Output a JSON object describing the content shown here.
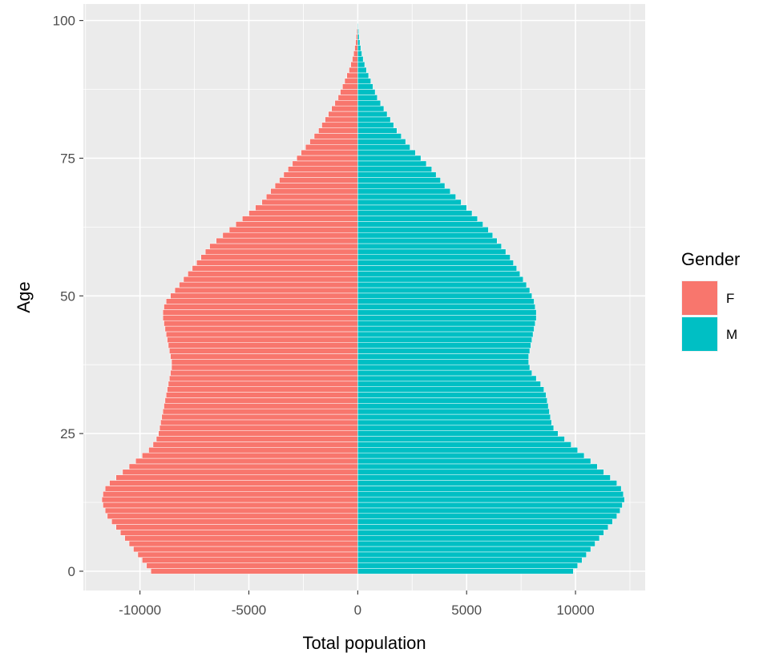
{
  "chart_data": {
    "type": "bar",
    "orientation": "horizontal",
    "xlabel": "Total population",
    "ylabel": "Age",
    "xlim": [
      -12600,
      13200
    ],
    "ylim": [
      -3.5,
      103
    ],
    "x_ticks": [
      -10000,
      -5000,
      0,
      5000,
      10000
    ],
    "x_tick_labels": [
      "-10000",
      "-5000",
      "0",
      "5000",
      "10000"
    ],
    "y_ticks": [
      0,
      25,
      50,
      75,
      100
    ],
    "y_tick_labels": [
      "0",
      "25",
      "50",
      "75",
      "100"
    ],
    "grid": true,
    "legend": {
      "title": "Gender",
      "position": "right",
      "entries": [
        {
          "label": "F",
          "color": "#F8766D"
        },
        {
          "label": "M",
          "color": "#00BFC4"
        }
      ]
    },
    "categories": [
      0,
      1,
      2,
      3,
      4,
      5,
      6,
      7,
      8,
      9,
      10,
      11,
      12,
      13,
      14,
      15,
      16,
      17,
      18,
      19,
      20,
      21,
      22,
      23,
      24,
      25,
      26,
      27,
      28,
      29,
      30,
      31,
      32,
      33,
      34,
      35,
      36,
      37,
      38,
      39,
      40,
      41,
      42,
      43,
      44,
      45,
      46,
      47,
      48,
      49,
      50,
      51,
      52,
      53,
      54,
      55,
      56,
      57,
      58,
      59,
      60,
      61,
      62,
      63,
      64,
      65,
      66,
      67,
      68,
      69,
      70,
      71,
      72,
      73,
      74,
      75,
      76,
      77,
      78,
      79,
      80,
      81,
      82,
      83,
      84,
      85,
      86,
      87,
      88,
      89,
      90,
      91,
      92,
      93,
      94,
      95,
      96,
      97,
      98,
      99,
      100
    ],
    "series": [
      {
        "name": "F",
        "color": "#F8766D",
        "values": [
          -9500,
          -9700,
          -9900,
          -10100,
          -10300,
          -10500,
          -10700,
          -10900,
          -11100,
          -11300,
          -11500,
          -11600,
          -11700,
          -11750,
          -11700,
          -11600,
          -11400,
          -11100,
          -10800,
          -10500,
          -10200,
          -9900,
          -9600,
          -9400,
          -9250,
          -9150,
          -9100,
          -9050,
          -9000,
          -8950,
          -8900,
          -8850,
          -8800,
          -8750,
          -8700,
          -8650,
          -8600,
          -8550,
          -8550,
          -8600,
          -8650,
          -8700,
          -8750,
          -8800,
          -8850,
          -8900,
          -8950,
          -8950,
          -8900,
          -8800,
          -8600,
          -8400,
          -8200,
          -8000,
          -7800,
          -7600,
          -7400,
          -7200,
          -7000,
          -6800,
          -6500,
          -6200,
          -5900,
          -5600,
          -5300,
          -5000,
          -4700,
          -4400,
          -4200,
          -4000,
          -3800,
          -3600,
          -3400,
          -3200,
          -3000,
          -2800,
          -2600,
          -2400,
          -2200,
          -2000,
          -1800,
          -1650,
          -1500,
          -1350,
          -1200,
          -1050,
          -900,
          -800,
          -700,
          -600,
          -500,
          -400,
          -320,
          -250,
          -190,
          -140,
          -100,
          -70,
          -45,
          -25,
          -15
        ]
      },
      {
        "name": "M",
        "color": "#00BFC4",
        "values": [
          9900,
          10100,
          10300,
          10500,
          10700,
          10900,
          11100,
          11300,
          11500,
          11700,
          11900,
          12050,
          12150,
          12250,
          12200,
          12100,
          11900,
          11600,
          11300,
          11000,
          10700,
          10400,
          10100,
          9800,
          9500,
          9200,
          9000,
          8900,
          8850,
          8800,
          8750,
          8700,
          8650,
          8550,
          8400,
          8200,
          8000,
          7900,
          7850,
          7850,
          7900,
          7950,
          8000,
          8050,
          8100,
          8150,
          8200,
          8200,
          8150,
          8100,
          8000,
          7900,
          7750,
          7600,
          7450,
          7300,
          7150,
          7000,
          6800,
          6600,
          6400,
          6200,
          6000,
          5750,
          5500,
          5250,
          5000,
          4750,
          4500,
          4250,
          4000,
          3800,
          3600,
          3400,
          3150,
          2900,
          2650,
          2400,
          2200,
          2000,
          1800,
          1650,
          1500,
          1350,
          1200,
          1050,
          900,
          800,
          700,
          600,
          500,
          400,
          320,
          250,
          190,
          140,
          100,
          70,
          45,
          25,
          15
        ]
      }
    ]
  }
}
